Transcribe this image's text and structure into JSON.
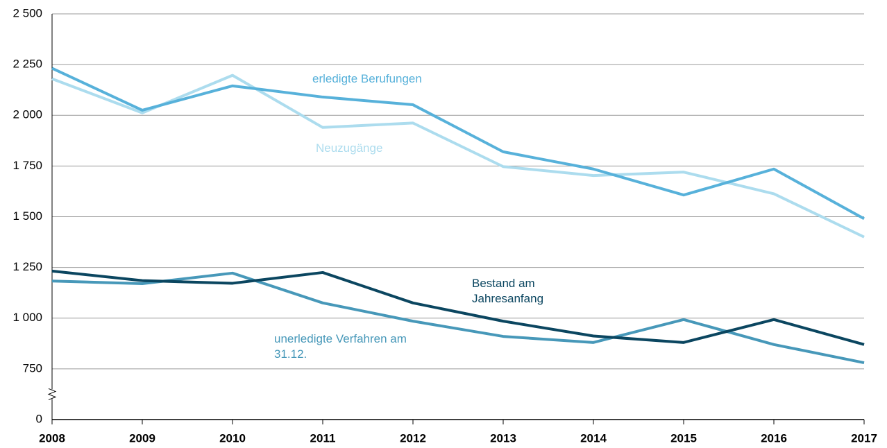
{
  "chart_data": {
    "type": "line",
    "x": [
      "2008",
      "2009",
      "2010",
      "2011",
      "2012",
      "2013",
      "2014",
      "2015",
      "2016",
      "2017"
    ],
    "series": [
      {
        "name": "erledigte Berufungen",
        "color": "#57b1da",
        "values": [
          2232,
          2025,
          2145,
          2090,
          2052,
          1820,
          1735,
          1607,
          1735,
          1490
        ]
      },
      {
        "name": "Neuzugänge",
        "color": "#acdcee",
        "values": [
          2180,
          2012,
          2197,
          1940,
          1962,
          1747,
          1703,
          1720,
          1613,
          1400
        ]
      },
      {
        "name": "Bestand am Jahresanfang",
        "color": "#0b4660",
        "values": [
          1232,
          1185,
          1172,
          1225,
          1075,
          985,
          912,
          880,
          993,
          870
        ]
      },
      {
        "name": "unerledigte Verfahren am 31.12.",
        "color": "#4798b9",
        "values": [
          1183,
          1170,
          1222,
          1075,
          985,
          910,
          880,
          993,
          870,
          780
        ]
      }
    ],
    "ylim": [
      0,
      2500
    ],
    "yticks": [
      0,
      750,
      {
        "value": 1000,
        "label": "1 000"
      },
      {
        "value": 1250,
        "label": "1 250"
      },
      {
        "value": 1500,
        "label": "1 500"
      },
      {
        "value": 1750,
        "label": "1 750"
      },
      {
        "value": 2000,
        "label": "2 000"
      },
      {
        "value": 2250,
        "label": "2 250"
      },
      {
        "value": 2500,
        "label": "2 500"
      }
    ],
    "broken_axis": true,
    "grid": true
  }
}
